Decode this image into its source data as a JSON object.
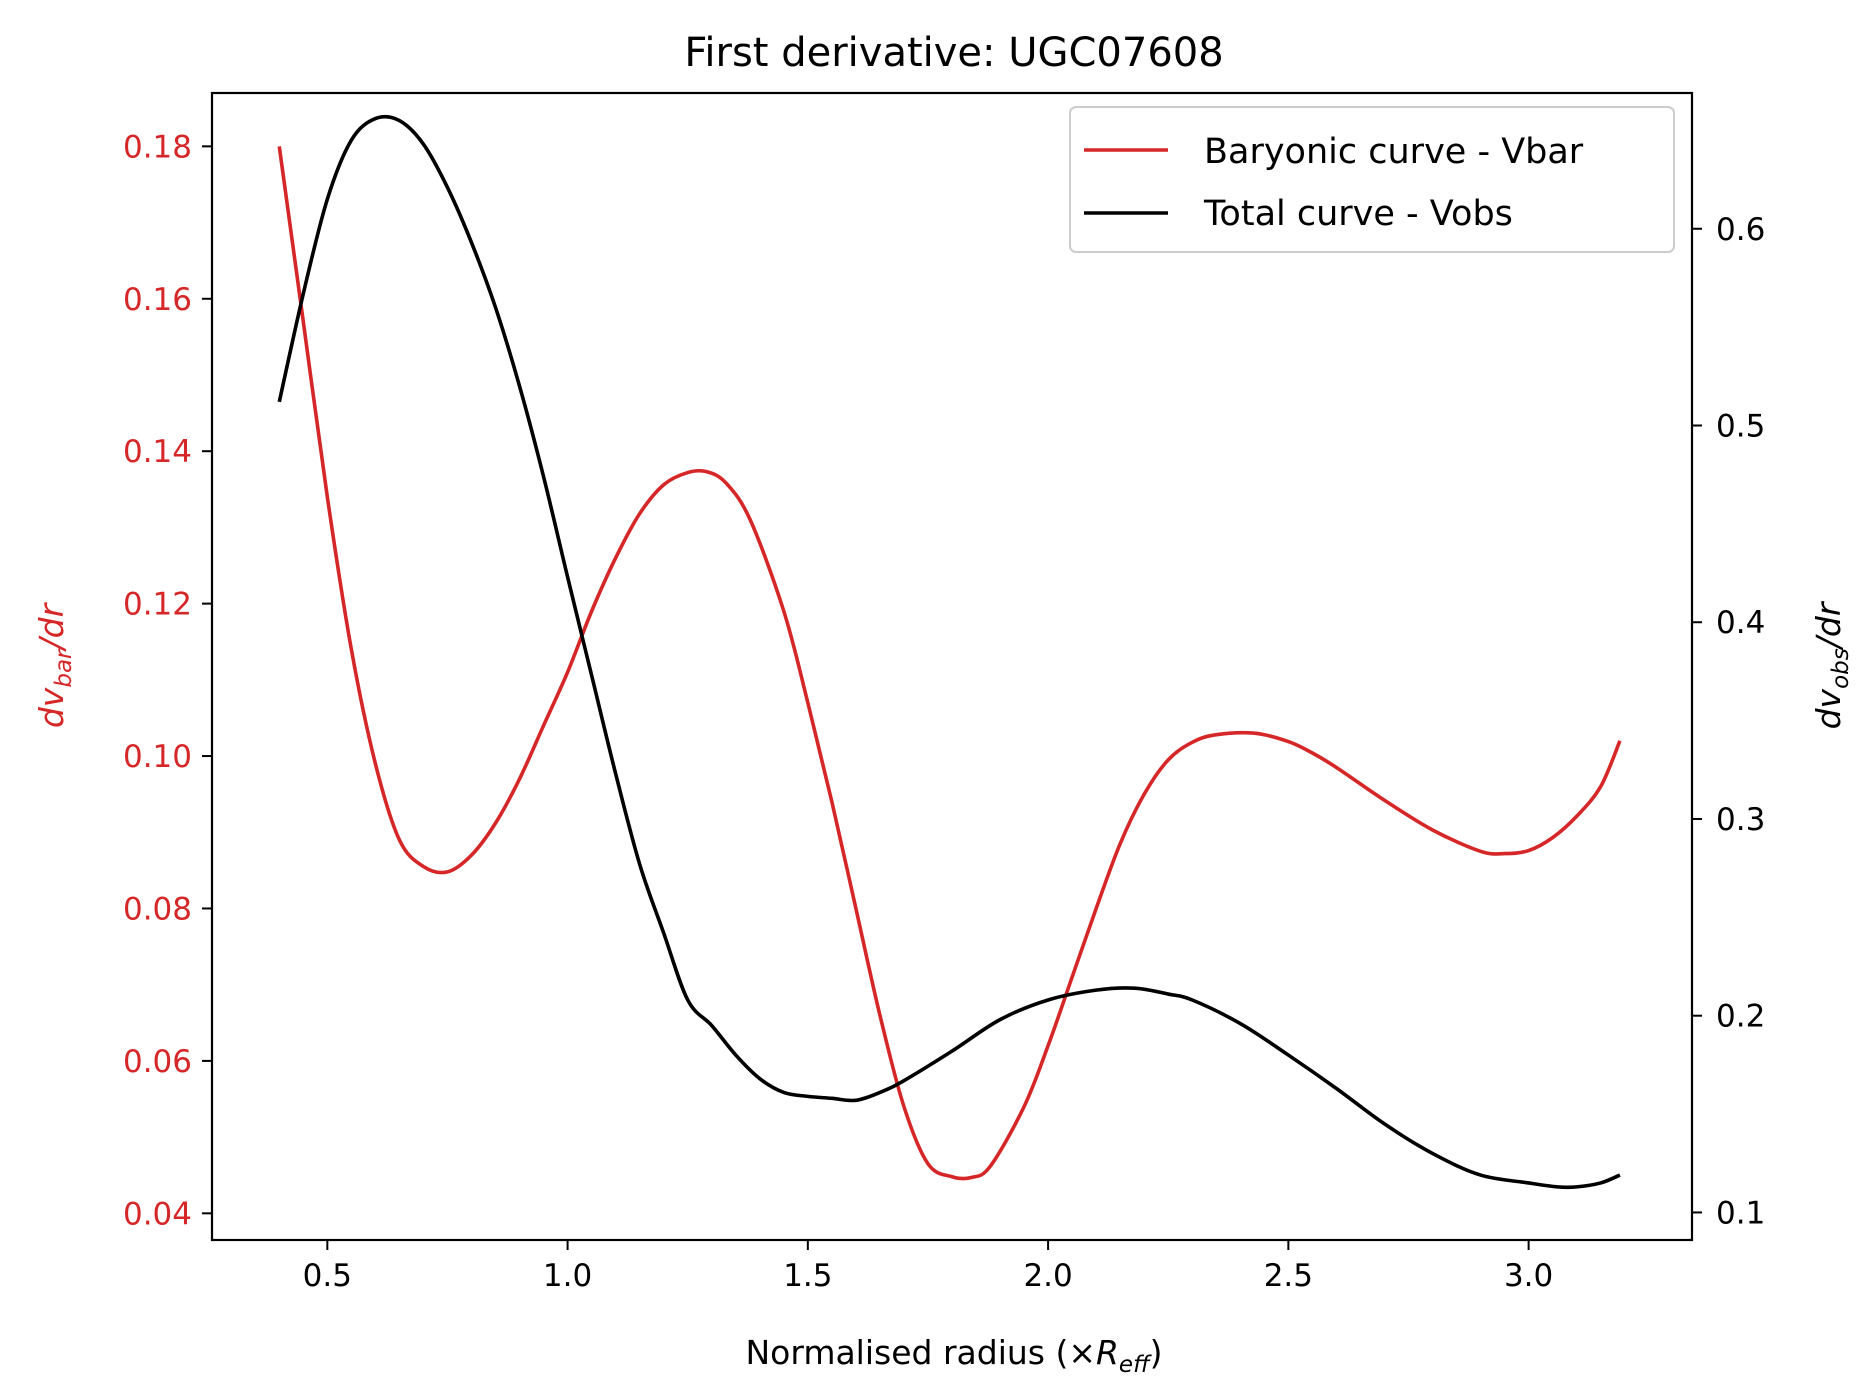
{
  "chart_data": {
    "type": "line",
    "title": "First derivative: UGC07608",
    "xlabel": {
      "prefix": "Normalised radius (×",
      "var": "R",
      "sub": "eff",
      "suffix": ")"
    },
    "ylabel_left": {
      "var": "dv",
      "sub": "bar",
      "suffix": "/dr"
    },
    "ylabel_right": {
      "var": "dv",
      "sub": "obs",
      "suffix": "/dr"
    },
    "xlim": [
      0.26,
      3.34
    ],
    "ylim_left": [
      0.0365,
      0.187
    ],
    "ylim_right": [
      0.086,
      0.669
    ],
    "x_ticks": [
      0.5,
      1.0,
      1.5,
      2.0,
      2.5,
      3.0
    ],
    "x_tick_labels": [
      "0.5",
      "1.0",
      "1.5",
      "2.0",
      "2.5",
      "3.0"
    ],
    "y_left_ticks": [
      0.04,
      0.06,
      0.08,
      0.1,
      0.12,
      0.14,
      0.16,
      0.18
    ],
    "y_left_tick_labels": [
      "0.04",
      "0.06",
      "0.08",
      "0.10",
      "0.12",
      "0.14",
      "0.16",
      "0.18"
    ],
    "y_right_ticks": [
      0.1,
      0.2,
      0.3,
      0.4,
      0.5,
      0.6
    ],
    "y_right_tick_labels": [
      "0.1",
      "0.2",
      "0.3",
      "0.4",
      "0.5",
      "0.6"
    ],
    "legend_placement": "upper right",
    "colors": {
      "vbar": "#d62728",
      "vobs": "#000000",
      "left_axis": "#d62728",
      "right_axis": "#000000"
    },
    "series": [
      {
        "name": "Baryonic curve - Vbar",
        "axis": "left",
        "color": "#d62728",
        "x": [
          0.4,
          0.45,
          0.5,
          0.55,
          0.6,
          0.65,
          0.7,
          0.75,
          0.8,
          0.85,
          0.9,
          0.95,
          1.0,
          1.05,
          1.1,
          1.15,
          1.2,
          1.25,
          1.29,
          1.33,
          1.38,
          1.45,
          1.5,
          1.55,
          1.6,
          1.65,
          1.7,
          1.75,
          1.8,
          1.84,
          1.88,
          1.95,
          2.0,
          2.05,
          2.1,
          2.15,
          2.2,
          2.25,
          2.3,
          2.35,
          2.43,
          2.5,
          2.55,
          2.6,
          2.7,
          2.8,
          2.9,
          2.95,
          3.0,
          3.05,
          3.1,
          3.15,
          3.19
        ],
        "y": [
          0.18,
          0.157,
          0.134,
          0.114,
          0.099,
          0.089,
          0.0855,
          0.0848,
          0.087,
          0.0912,
          0.097,
          0.104,
          0.111,
          0.119,
          0.126,
          0.1318,
          0.1356,
          0.1372,
          0.1373,
          0.1358,
          0.131,
          0.119,
          0.107,
          0.094,
          0.08,
          0.066,
          0.054,
          0.0465,
          0.0448,
          0.0447,
          0.0462,
          0.054,
          0.062,
          0.071,
          0.08,
          0.0885,
          0.095,
          0.0995,
          0.1018,
          0.1028,
          0.103,
          0.1019,
          0.1004,
          0.0985,
          0.0942,
          0.0903,
          0.0875,
          0.0872,
          0.0876,
          0.0893,
          0.0921,
          0.096,
          0.102
        ]
      },
      {
        "name": "Total curve - Vobs",
        "axis": "right",
        "color": "#000000",
        "x": [
          0.4,
          0.45,
          0.5,
          0.55,
          0.6,
          0.65,
          0.7,
          0.75,
          0.8,
          0.85,
          0.9,
          0.95,
          1.0,
          1.05,
          1.1,
          1.15,
          1.2,
          1.25,
          1.3,
          1.35,
          1.4,
          1.45,
          1.5,
          1.55,
          1.6,
          1.65,
          1.7,
          1.8,
          1.9,
          2.0,
          2.1,
          2.18,
          2.25,
          2.3,
          2.4,
          2.5,
          2.6,
          2.7,
          2.8,
          2.9,
          3.0,
          3.06,
          3.1,
          3.15,
          3.19
        ],
        "y": [
          0.512,
          0.567,
          0.615,
          0.645,
          0.656,
          0.655,
          0.643,
          0.621,
          0.593,
          0.56,
          0.52,
          0.474,
          0.423,
          0.373,
          0.323,
          0.277,
          0.242,
          0.208,
          0.195,
          0.18,
          0.168,
          0.161,
          0.159,
          0.158,
          0.157,
          0.161,
          0.167,
          0.182,
          0.198,
          0.208,
          0.213,
          0.214,
          0.211,
          0.208,
          0.196,
          0.18,
          0.163,
          0.145,
          0.13,
          0.119,
          0.115,
          0.113,
          0.113,
          0.115,
          0.119
        ]
      }
    ]
  }
}
